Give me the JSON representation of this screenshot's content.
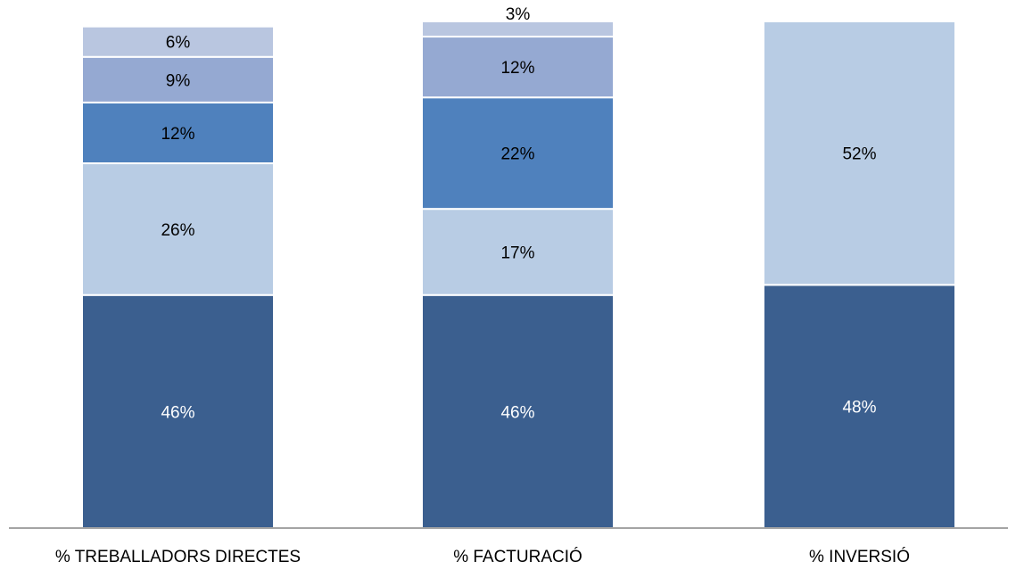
{
  "chart_data": {
    "type": "bar",
    "stacked": true,
    "normalized": true,
    "categories": [
      "% TREBALLADORS DIRECTES",
      "% FACTURACIÓ",
      "% INVERSIÓ"
    ],
    "series": [
      {
        "values": [
          46,
          46,
          48
        ],
        "labels": [
          "46%",
          "46%",
          "48%"
        ],
        "color": "#3b5f8f",
        "label_color": "#ffffff"
      },
      {
        "values": [
          26,
          17,
          52
        ],
        "labels": [
          "26%",
          "17%",
          "52%"
        ],
        "color": "#b8cce4",
        "label_color": "#000000"
      },
      {
        "values": [
          12,
          22,
          0
        ],
        "labels": [
          "12%",
          "22%",
          ""
        ],
        "color": "#4f81bd",
        "label_color": "#000000"
      },
      {
        "values": [
          9,
          12,
          0
        ],
        "labels": [
          "9%",
          "12%",
          ""
        ],
        "color": "#95a9d2",
        "label_color": "#000000"
      },
      {
        "values": [
          6,
          3,
          0
        ],
        "labels": [
          "6%",
          "3%",
          ""
        ],
        "color": "#b9c6e0",
        "label_color": "#000000"
      }
    ],
    "ylim": [
      0,
      100
    ],
    "grid": false,
    "legend": "none"
  }
}
